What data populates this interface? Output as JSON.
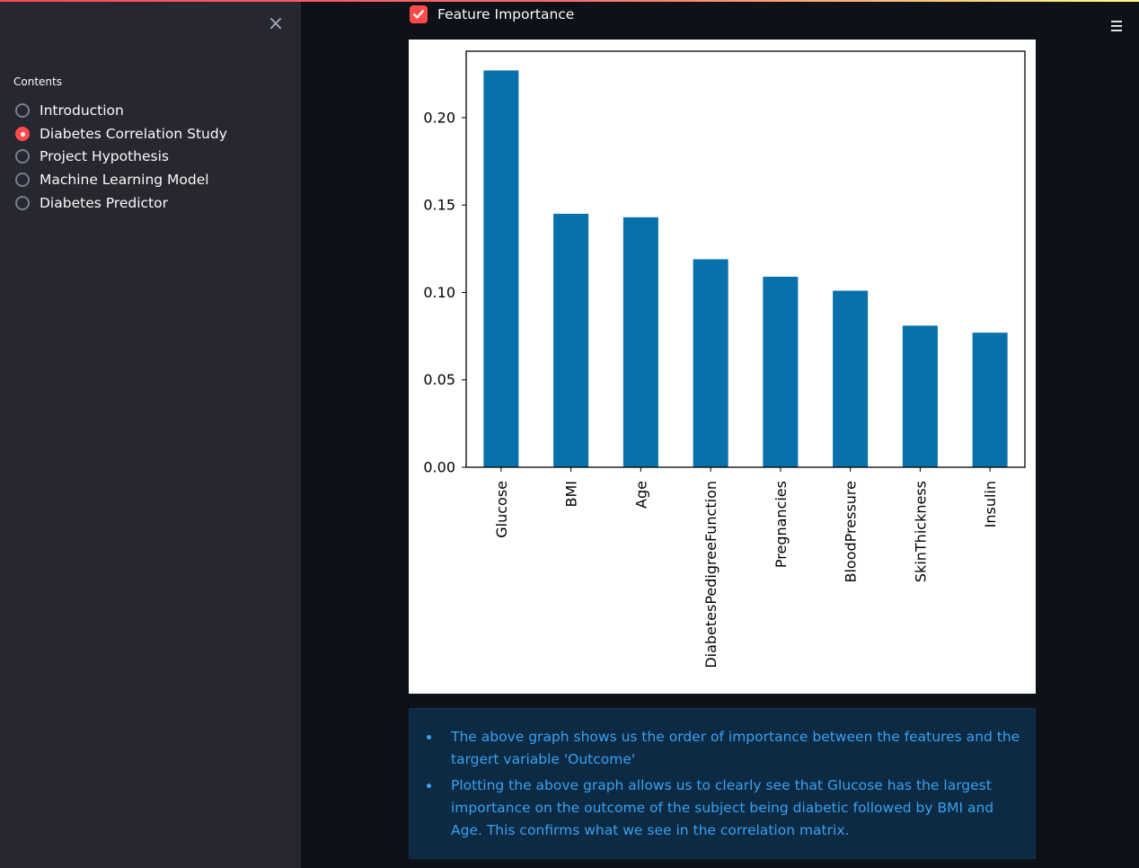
{
  "sidebar": {
    "close_label": "×",
    "contents_label": "Contents",
    "items": [
      {
        "label": "Introduction",
        "selected": false
      },
      {
        "label": "Diabetes Correlation Study",
        "selected": true
      },
      {
        "label": "Project Hypothesis",
        "selected": false
      },
      {
        "label": "Machine Learning Model",
        "selected": false
      },
      {
        "label": "Diabetes Predictor",
        "selected": false
      }
    ]
  },
  "main": {
    "checkbox": {
      "label": "Feature Importance",
      "checked": true
    },
    "menu_icon": "hamburger-menu-icon",
    "info": {
      "bullets": [
        "The above graph shows us the order of importance between the features and the targert variable 'Outcome'",
        "Plotting the above graph allows us to clearly see that Glucose has the largest importance on the outcome of the subject being diabetic followed by BMI and Age. This confirms what we see in the correlation matrix."
      ]
    }
  },
  "colors": {
    "accent": "#ff4b4b",
    "bar": "#0870aa",
    "info_text": "#3aa0f0",
    "info_bg": "#0c2a43",
    "sidebar_bg": "#262730",
    "app_bg": "#0e1117"
  },
  "chart_data": {
    "type": "bar",
    "categories": [
      "Glucose",
      "BMI",
      "Age",
      "DiabetesPedigreeFunction",
      "Pregnancies",
      "BloodPressure",
      "SkinThickness",
      "Insulin"
    ],
    "values": [
      0.227,
      0.145,
      0.143,
      0.119,
      0.109,
      0.101,
      0.081,
      0.077
    ],
    "yticks": [
      "0.00",
      "0.05",
      "0.10",
      "0.15",
      "0.20"
    ],
    "ylim": [
      0,
      0.238
    ],
    "title": "",
    "xlabel": "",
    "ylabel": "",
    "grid": false
  }
}
